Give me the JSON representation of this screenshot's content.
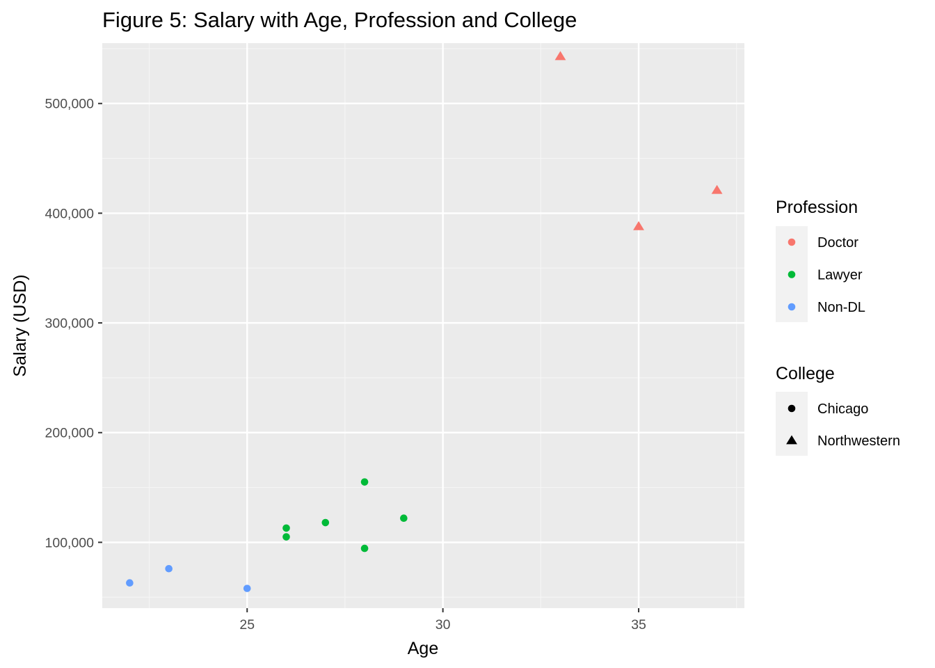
{
  "chart_data": {
    "type": "scatter",
    "title": "Figure 5: Salary with Age, Profession and College",
    "xlabel": "Age",
    "ylabel": "Salary (USD)",
    "xlim": [
      21.3,
      37.7
    ],
    "ylim": [
      40000,
      555000
    ],
    "x_ticks": [
      25,
      30,
      35
    ],
    "x_tick_labels": [
      "25",
      "30",
      "35"
    ],
    "y_ticks": [
      100000,
      200000,
      300000,
      400000,
      500000
    ],
    "y_tick_labels": [
      "100,000",
      "200,000",
      "300,000",
      "400,000",
      "500,000"
    ],
    "grid": true,
    "legend_placement": "right",
    "color_legend": {
      "title": "Profession",
      "entries": [
        {
          "label": "Doctor",
          "color": "#F8766D"
        },
        {
          "label": "Lawyer",
          "color": "#00BA38"
        },
        {
          "label": "Non-DL",
          "color": "#619CFF"
        }
      ]
    },
    "shape_legend": {
      "title": "College",
      "entries": [
        {
          "label": "Chicago",
          "shape": "circle"
        },
        {
          "label": "Northwestern",
          "shape": "triangle"
        }
      ]
    },
    "points": [
      {
        "x": 22,
        "y": 63000,
        "profession": "Non-DL",
        "college": "Chicago"
      },
      {
        "x": 23,
        "y": 76000,
        "profession": "Non-DL",
        "college": "Chicago"
      },
      {
        "x": 25,
        "y": 58000,
        "profession": "Non-DL",
        "college": "Chicago"
      },
      {
        "x": 26,
        "y": 113000,
        "profession": "Lawyer",
        "college": "Chicago"
      },
      {
        "x": 26,
        "y": 105000,
        "profession": "Lawyer",
        "college": "Chicago"
      },
      {
        "x": 27,
        "y": 118000,
        "profession": "Lawyer",
        "college": "Chicago"
      },
      {
        "x": 28,
        "y": 155000,
        "profession": "Lawyer",
        "college": "Chicago"
      },
      {
        "x": 28,
        "y": 94500,
        "profession": "Lawyer",
        "college": "Chicago"
      },
      {
        "x": 29,
        "y": 122000,
        "profession": "Lawyer",
        "college": "Chicago"
      },
      {
        "x": 33,
        "y": 543000,
        "profession": "Doctor",
        "college": "Northwestern"
      },
      {
        "x": 35,
        "y": 388000,
        "profession": "Doctor",
        "college": "Northwestern"
      },
      {
        "x": 37,
        "y": 421000,
        "profession": "Doctor",
        "college": "Northwestern"
      }
    ]
  }
}
